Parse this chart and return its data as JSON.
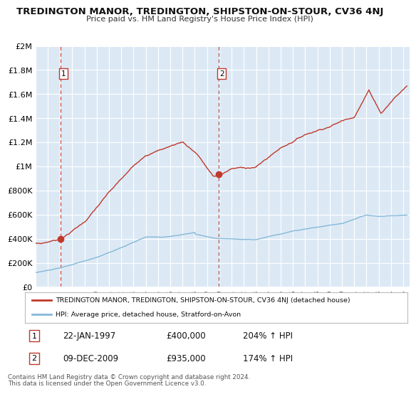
{
  "title": "TREDINGTON MANOR, TREDINGTON, SHIPSTON-ON-STOUR, CV36 4NJ",
  "subtitle": "Price paid vs. HM Land Registry's House Price Index (HPI)",
  "bg_color": "#dce9f5",
  "red_line_label": "TREDINGTON MANOR, TREDINGTON, SHIPSTON-ON-STOUR, CV36 4NJ (detached house)",
  "blue_line_label": "HPI: Average price, detached house, Stratford-on-Avon",
  "transactions": [
    {
      "label": "1",
      "date": "22-JAN-1997",
      "price": "£400,000",
      "hpi_pct": "204% ↑ HPI",
      "x_year": 1997.055,
      "y_val": 400000
    },
    {
      "label": "2",
      "date": "09-DEC-2009",
      "price": "£935,000",
      "hpi_pct": "174% ↑ HPI",
      "x_year": 2009.936,
      "y_val": 935000
    }
  ],
  "footnote1": "Contains HM Land Registry data © Crown copyright and database right 2024.",
  "footnote2": "This data is licensed under the Open Government Licence v3.0.",
  "xmin": 1995.0,
  "xmax": 2025.5,
  "ymin": 0,
  "ymax": 2000000,
  "yticks": [
    0,
    200000,
    400000,
    600000,
    800000,
    1000000,
    1200000,
    1400000,
    1600000,
    1800000,
    2000000
  ],
  "ytick_labels": [
    "£0",
    "£200K",
    "£400K",
    "£600K",
    "£800K",
    "£1M",
    "£1.2M",
    "£1.4M",
    "£1.6M",
    "£1.8M",
    "£2M"
  ],
  "xticks": [
    1995,
    1996,
    1997,
    1998,
    1999,
    2000,
    2001,
    2002,
    2003,
    2004,
    2005,
    2006,
    2007,
    2008,
    2009,
    2010,
    2011,
    2012,
    2013,
    2014,
    2015,
    2016,
    2017,
    2018,
    2019,
    2020,
    2021,
    2022,
    2023,
    2024,
    2025
  ],
  "red_color": "#c0392b",
  "blue_color": "#85b8d8",
  "dashed_color": "#c0392b",
  "grid_color": "#ffffff",
  "legend_border_color": "#bbbbbb",
  "box_label_color": "#c0392b"
}
